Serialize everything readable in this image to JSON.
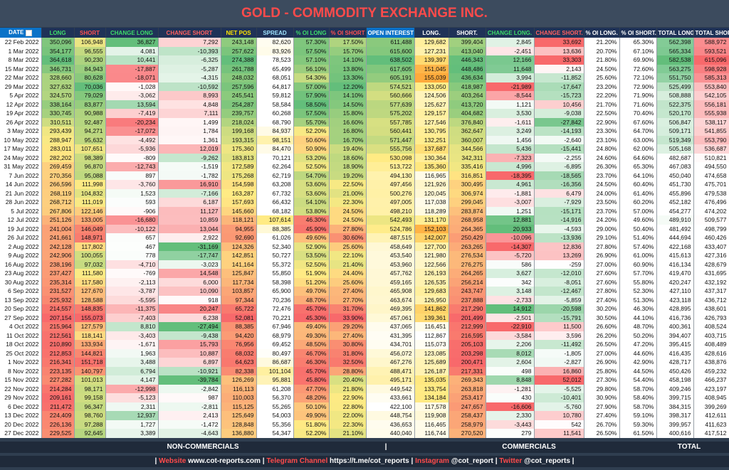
{
  "header": {
    "title": "GOLD - COMMODITY EXCHANGE INC."
  },
  "table": {
    "columns": [
      "DATE",
      "LONG",
      "SHORT",
      "CHANGE LONG",
      "CHANGE SHORT",
      "NET POS",
      "SPREAD",
      "% OI LONG",
      "% OI SHORT",
      "OPEN INTEREST",
      "LONG.",
      "SHORT.",
      "CHANGE LONG.",
      "CHANGE SHORT.",
      "% OI LONG.",
      "% OI SHORT.",
      "TOTAL LONG",
      "TOTAL SHORT"
    ],
    "rows": [
      [
        "22 Feb 2022",
        "350,096",
        "106,948",
        "36,827",
        "7,292",
        "243,148",
        "82,620",
        "57.30%",
        "17.50%",
        "611,488",
        "129,682",
        "399,404",
        "2,845",
        "33,692",
        "21.20%",
        "65.30%",
        "562,398",
        "588,972"
      ],
      [
        "1 Mar 2022",
        "354,177",
        "96,555",
        "4,081",
        "-10,393",
        "257,622",
        "83,926",
        "57.50%",
        "15.70%",
        "615,600",
        "127,231",
        "413,040",
        "-2,451",
        "13,636",
        "20.70%",
        "67.10%",
        "565,334",
        "593,521"
      ],
      [
        "8 Mar 2022",
        "364,618",
        "90,230",
        "10,441",
        "-6,325",
        "274,388",
        "78,523",
        "57.10%",
        "14.10%",
        "638,502",
        "139,397",
        "446,343",
        "12,166",
        "33,303",
        "21.80%",
        "69.90%",
        "582,538",
        "615,096"
      ],
      [
        "15 Mar 2022",
        "346,731",
        "84,943",
        "-17,887",
        "-5,287",
        "261,788",
        "65,499",
        "56.10%",
        "13.80%",
        "617,605",
        "151,045",
        "448,486",
        "11,648",
        "2,143",
        "24.50%",
        "72.60%",
        "563,275",
        "598,928"
      ],
      [
        "22 Mar 2022",
        "328,660",
        "80,628",
        "-18,071",
        "-4,315",
        "248,032",
        "68,051",
        "54.30%",
        "13.30%",
        "605,191",
        "155,039",
        "436,634",
        "3,994",
        "-11,852",
        "25.60%",
        "72.10%",
        "551,750",
        "585,313"
      ],
      [
        "29 Mar 2022",
        "327,632",
        "70,036",
        "-1,028",
        "-10,592",
        "257,596",
        "64,817",
        "57.00%",
        "12.20%",
        "574,521",
        "133,050",
        "418,987",
        "-21,989",
        "-17,647",
        "23.20%",
        "72.90%",
        "525,499",
        "553,840"
      ],
      [
        "5 Apr 2022",
        "324,570",
        "79,029",
        "-3,062",
        "8,993",
        "245,541",
        "59,812",
        "57.90%",
        "14.10%",
        "560,666",
        "124,506",
        "403,264",
        "-8,544",
        "-15,723",
        "22.20%",
        "71.90%",
        "508,888",
        "542,105"
      ],
      [
        "12 Apr 2022",
        "338,164",
        "83,877",
        "13,594",
        "4,848",
        "254,287",
        "58,584",
        "58.50%",
        "14.50%",
        "577,639",
        "125,627",
        "413,720",
        "1,121",
        "10,456",
        "21.70%",
        "71.60%",
        "522,375",
        "556,181"
      ],
      [
        "19 Apr 2022",
        "330,745",
        "90,988",
        "-7,419",
        "7,111",
        "239,757",
        "60,268",
        "57.50%",
        "15.80%",
        "575,202",
        "129,157",
        "404,682",
        "3,530",
        "-9,038",
        "22.50%",
        "70.40%",
        "520,170",
        "555,938"
      ],
      [
        "26 Apr 2022",
        "310,511",
        "92,487",
        "-20,234",
        "1,499",
        "218,024",
        "68,790",
        "55.70%",
        "16.60%",
        "557,785",
        "127,546",
        "376,840",
        "-1,611",
        "-27,842",
        "22.90%",
        "67.60%",
        "506,847",
        "538,117"
      ],
      [
        "3 May 2022",
        "293,439",
        "94,271",
        "-17,072",
        "1,784",
        "199,168",
        "84,937",
        "52.20%",
        "16.80%",
        "560,441",
        "130,795",
        "362,647",
        "3,249",
        "-14,193",
        "23.30%",
        "64.70%",
        "509,171",
        "541,855"
      ],
      [
        "10 May 2022",
        "288,947",
        "95,632",
        "-4,492",
        "1,361",
        "193,315",
        "98,151",
        "50.60%",
        "16.70%",
        "571,447",
        "132,251",
        "360,007",
        "1,456",
        "-2,640",
        "23.10%",
        "63.00%",
        "519,349",
        "553,790"
      ],
      [
        "17 May 2022",
        "283,011",
        "107,651",
        "-5,936",
        "12,019",
        "175,360",
        "84,470",
        "50.90%",
        "19.40%",
        "555,756",
        "137,687",
        "344,566",
        "5,436",
        "-15,441",
        "24.80%",
        "62.00%",
        "505,168",
        "536,687"
      ],
      [
        "24 May 2022",
        "282,202",
        "98,389",
        "-809",
        "-9,262",
        "183,813",
        "70,121",
        "53.20%",
        "18.60%",
        "530,098",
        "130,364",
        "342,311",
        "-7,323",
        "-2,255",
        "24.60%",
        "64.60%",
        "482,687",
        "510,821"
      ],
      [
        "31 May 2022",
        "269,459",
        "96,870",
        "-12,743",
        "-1,519",
        "172,589",
        "62,264",
        "52.50%",
        "18.90%",
        "513,722",
        "135,360",
        "335,416",
        "4,996",
        "-6,895",
        "26.30%",
        "65.30%",
        "467,083",
        "494,550"
      ],
      [
        "7 Jun 2022",
        "270,356",
        "95,088",
        "897",
        "-1,782",
        "175,268",
        "62,719",
        "54.70%",
        "19.20%",
        "494,130",
        "116,965",
        "316,851",
        "-18,395",
        "-18,565",
        "23.70%",
        "64.10%",
        "450,040",
        "474,658"
      ],
      [
        "14 Jun 2022",
        "266,596",
        "111,998",
        "-3,760",
        "16,910",
        "154,598",
        "63,208",
        "53.60%",
        "22.50%",
        "497,456",
        "121,926",
        "300,495",
        "4,961",
        "-16,356",
        "24.50%",
        "60.40%",
        "451,730",
        "475,701"
      ],
      [
        "21 Jun 2022",
        "268,119",
        "104,832",
        "1,523",
        "-7,166",
        "163,287",
        "67,732",
        "53.60%",
        "21.00%",
        "500,276",
        "120,045",
        "306,974",
        "-1,881",
        "6,479",
        "24.00%",
        "61.40%",
        "455,896",
        "479,538"
      ],
      [
        "28 Jun 2022",
        "268,712",
        "111,019",
        "593",
        "6,187",
        "157,693",
        "66,432",
        "54.10%",
        "22.30%",
        "497,005",
        "117,038",
        "299,045",
        "-3,007",
        "-7,929",
        "23.50%",
        "60.20%",
        "452,182",
        "476,496"
      ],
      [
        "5 Jul 2022",
        "267,806",
        "122,146",
        "-906",
        "11,127",
        "145,660",
        "68,182",
        "53.80%",
        "24.50%",
        "498,210",
        "118,289",
        "283,874",
        "1,251",
        "-15,171",
        "23.70%",
        "57.00%",
        "454,277",
        "474,202"
      ],
      [
        "12 Jul 2022",
        "251,126",
        "133,005",
        "-16,680",
        "10,859",
        "118,121",
        "107,614",
        "46.30%",
        "24.50%",
        "542,493",
        "131,170",
        "268,958",
        "12,881",
        "-14,916",
        "24.20%",
        "49.60%",
        "489,910",
        "509,577"
      ],
      [
        "19 Jul 2022",
        "241,004",
        "146,049",
        "-10,122",
        "13,044",
        "94,955",
        "88,385",
        "45.90%",
        "27.80%",
        "524,786",
        "152,103",
        "264,365",
        "20,933",
        "-4,593",
        "29.00%",
        "50.40%",
        "481,492",
        "498,799"
      ],
      [
        "26 Jul 2022",
        "241,661",
        "148,971",
        "657",
        "2,922",
        "92,690",
        "61,026",
        "49.60%",
        "30.60%",
        "487,515",
        "142,007",
        "250,429",
        "-10,096",
        "-13,936",
        "29.10%",
        "51.40%",
        "444,694",
        "460,426"
      ],
      [
        "2 Aug 2022",
        "242,128",
        "117,802",
        "467",
        "-31,169",
        "124,326",
        "52,340",
        "52.90%",
        "25.60%",
        "458,649",
        "127,700",
        "263,265",
        "-14,307",
        "12,836",
        "27.80%",
        "57.40%",
        "422,168",
        "433,407"
      ],
      [
        "9 Aug 2022",
        "242,906",
        "100,055",
        "778",
        "-17,747",
        "142,851",
        "50,727",
        "53.50%",
        "22.10%",
        "453,540",
        "121,980",
        "276,534",
        "-5,720",
        "13,269",
        "26.90%",
        "61.00%",
        "415,613",
        "427,316"
      ],
      [
        "16 Aug 2022",
        "238,196",
        "97,032",
        "-4,710",
        "-3,023",
        "141,164",
        "55,372",
        "52.50%",
        "21.40%",
        "453,960",
        "122,566",
        "276,275",
        "586",
        "-259",
        "27.00%",
        "60.90%",
        "416,134",
        "428,679"
      ],
      [
        "23 Aug 2022",
        "237,427",
        "111,580",
        "-769",
        "14,548",
        "125,847",
        "55,850",
        "51.90%",
        "24.40%",
        "457,762",
        "126,193",
        "264,265",
        "3,627",
        "-12,010",
        "27.60%",
        "57.70%",
        "419,470",
        "431,695"
      ],
      [
        "30 Aug 2022",
        "235,314",
        "117,580",
        "-2,113",
        "6,000",
        "117,734",
        "58,398",
        "51.20%",
        "25.60%",
        "459,165",
        "126,535",
        "256,214",
        "342",
        "-8,051",
        "27.60%",
        "55.80%",
        "420,247",
        "432,192"
      ],
      [
        "6 Sep 2022",
        "231,527",
        "127,670",
        "-3,787",
        "10,090",
        "103,857",
        "65,900",
        "49.70%",
        "27.40%",
        "465,908",
        "129,683",
        "243,747",
        "3,148",
        "-12,467",
        "27.80%",
        "52.30%",
        "427,110",
        "437,317"
      ],
      [
        "13 Sep 2022",
        "225,932",
        "128,588",
        "-5,595",
        "918",
        "97,344",
        "70,236",
        "48.70%",
        "27.70%",
        "463,674",
        "126,950",
        "237,888",
        "-2,733",
        "-5,859",
        "27.40%",
        "51.30%",
        "423,118",
        "436,712"
      ],
      [
        "20 Sep 2022",
        "214,557",
        "148,835",
        "-11,375",
        "20,247",
        "65,722",
        "72,476",
        "45.70%",
        "31.70%",
        "469,395",
        "141,862",
        "217,290",
        "14,912",
        "-20,598",
        "30.20%",
        "46.30%",
        "428,895",
        "438,601"
      ],
      [
        "27 Sep 2022",
        "207,154",
        "155,073",
        "-7,403",
        "6,238",
        "52,081",
        "70,221",
        "45.30%",
        "33.90%",
        "457,061",
        "139,361",
        "201,499",
        "-2,501",
        "-15,791",
        "30.50%",
        "44.10%",
        "416,736",
        "426,793"
      ],
      [
        "4 Oct 2022",
        "215,964",
        "127,579",
        "8,810",
        "-27,494",
        "88,385",
        "67,946",
        "49.40%",
        "29.20%",
        "437,065",
        "116,451",
        "212,999",
        "-22,910",
        "11,500",
        "26.60%",
        "48.70%",
        "400,361",
        "408,524"
      ],
      [
        "11 Oct 2022",
        "212,561",
        "118,141",
        "-3,403",
        "-9,438",
        "94,420",
        "68,979",
        "49.30%",
        "27.40%",
        "431,395",
        "112,867",
        "216,595",
        "-3,584",
        "3,596",
        "26.20%",
        "50.20%",
        "394,407",
        "403,715"
      ],
      [
        "18 Oct 2022",
        "210,890",
        "133,934",
        "-1,671",
        "15,793",
        "76,956",
        "69,452",
        "48.50%",
        "30.80%",
        "434,701",
        "115,073",
        "205,103",
        "2,206",
        "-11,492",
        "26.50%",
        "47.20%",
        "395,415",
        "408,489"
      ],
      [
        "25 Oct 2022",
        "212,853",
        "144,821",
        "1,963",
        "10,887",
        "68,032",
        "80,497",
        "46.70%",
        "31.80%",
        "456,072",
        "123,085",
        "203,298",
        "8,012",
        "-1,805",
        "27.00%",
        "44.60%",
        "416,435",
        "428,616"
      ],
      [
        "1 Nov 2022",
        "216,341",
        "151,718",
        "3,488",
        "6,897",
        "64,623",
        "86,687",
        "46.30%",
        "32.50%",
        "467,276",
        "125,689",
        "200,471",
        "2,604",
        "-2,827",
        "26.90%",
        "42.90%",
        "428,717",
        "438,876"
      ],
      [
        "8 Nov 2022",
        "223,135",
        "140,797",
        "6,794",
        "-10,921",
        "82,338",
        "101,104",
        "45.70%",
        "28.80%",
        "488,471",
        "126,187",
        "217,331",
        "498",
        "16,860",
        "25.80%",
        "44.50%",
        "450,426",
        "459,232"
      ],
      [
        "15 Nov 2022",
        "227,282",
        "101,013",
        "4,147",
        "-39,784",
        "126,269",
        "95,881",
        "45.80%",
        "20.40%",
        "495,171",
        "135,035",
        "269,343",
        "8,848",
        "52,012",
        "27.30%",
        "54.40%",
        "458,198",
        "466,237"
      ],
      [
        "22 Nov 2022",
        "214,284",
        "98,171",
        "-12,998",
        "-2,842",
        "116,113",
        "61,208",
        "47.70%",
        "21.80%",
        "449,542",
        "133,754",
        "263,818",
        "-1,281",
        "-5,525",
        "29.80%",
        "58.70%",
        "409,246",
        "423,197"
      ],
      [
        "29 Nov 2022",
        "209,161",
        "99,158",
        "-5,123",
        "987",
        "110,003",
        "56,370",
        "48.20%",
        "22.90%",
        "433,661",
        "134,184",
        "253,417",
        "430",
        "-10,401",
        "30.90%",
        "58.40%",
        "399,715",
        "408,945"
      ],
      [
        "6 Dec 2022",
        "211,472",
        "96,347",
        "2,311",
        "-2,811",
        "115,125",
        "55,265",
        "50.10%",
        "22.80%",
        "422,100",
        "117,578",
        "247,657",
        "-16,606",
        "-5,760",
        "27.90%",
        "58.70%",
        "384,315",
        "399,269"
      ],
      [
        "13 Dec 2022",
        "224,409",
        "98,760",
        "12,937",
        "2,413",
        "125,649",
        "54,003",
        "49.90%",
        "22.00%",
        "448,754",
        "119,908",
        "258,437",
        "2,330",
        "10,780",
        "27.40%",
        "59.10%",
        "398,317",
        "412,611"
      ],
      [
        "20 Dec 2022",
        "226,136",
        "97,288",
        "1,727",
        "-1,472",
        "128,848",
        "55,356",
        "51.80%",
        "22.30%",
        "436,653",
        "116,465",
        "258,979",
        "-3,443",
        "542",
        "26.70%",
        "59.30%",
        "399,957",
        "411,623"
      ],
      [
        "27 Dec 2022",
        "229,525",
        "92,645",
        "3,389",
        "-4,643",
        "136,880",
        "54,347",
        "52.20%",
        "21.10%",
        "440,040",
        "116,744",
        "270,520",
        "279",
        "11,541",
        "26.50%",
        "61.50%",
        "400,616",
        "417,512"
      ]
    ]
  },
  "footer": {
    "groups": [
      "NON-COMMERCIALS",
      "COMMERCIALS",
      "TOTAL"
    ],
    "separator": "|"
  },
  "links": {
    "separator": "|",
    "items": [
      {
        "label": "Website",
        "value": "www.cot-reports.com"
      },
      {
        "label": "Telegram Channel",
        "value": "https://t.me/cot_reports"
      },
      {
        "label": "Instagram",
        "value": "@cot_report"
      },
      {
        "label": "Twitter",
        "value": "@cot_reports"
      }
    ]
  }
}
